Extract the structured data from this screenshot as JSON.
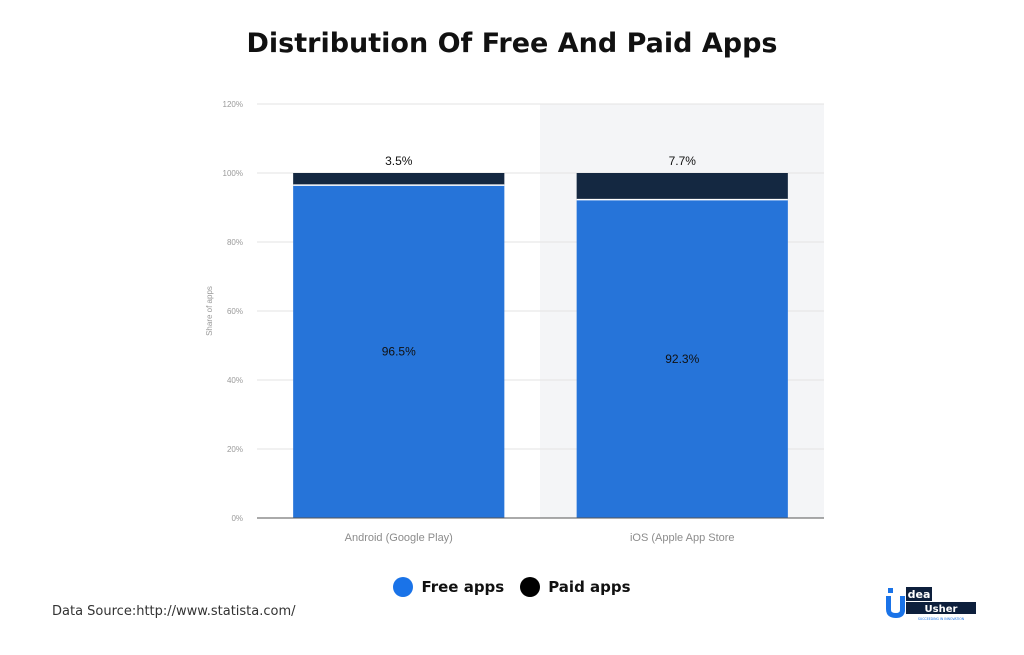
{
  "chart_data": {
    "type": "bar",
    "stacked": true,
    "title": "Distribution Of Free And Paid Apps",
    "ylabel": "Share of apps",
    "xlabel": "",
    "ylim": [
      0,
      120
    ],
    "yticks": [
      0,
      20,
      40,
      60,
      80,
      100,
      120
    ],
    "ytick_labels": [
      "0%",
      "20%",
      "40%",
      "60%",
      "80%",
      "100%",
      "120%"
    ],
    "grid": true,
    "legend_position": "bottom-center",
    "categories": [
      "Android (Google Play)",
      "iOS (Apple App Store"
    ],
    "series": [
      {
        "name": "Free apps",
        "values": [
          96.5,
          92.3
        ],
        "labels": [
          "96.5%",
          "92.3%"
        ],
        "color": "#2674d9"
      },
      {
        "name": "Paid apps",
        "values": [
          3.5,
          7.7
        ],
        "labels": [
          "3.5%",
          "7.7%"
        ],
        "color": "#142841"
      }
    ]
  },
  "legend": {
    "items": [
      {
        "label": "Free apps",
        "color": "#1a73e8"
      },
      {
        "label": "Paid apps",
        "color": "#000000"
      }
    ]
  },
  "source_note": "Data Source:http://www.statista.com/",
  "brand": {
    "logo_text": "Idea Usher",
    "tagline": "SUCCEEDING IN INNOVATION",
    "accent": "#1a73e8"
  }
}
